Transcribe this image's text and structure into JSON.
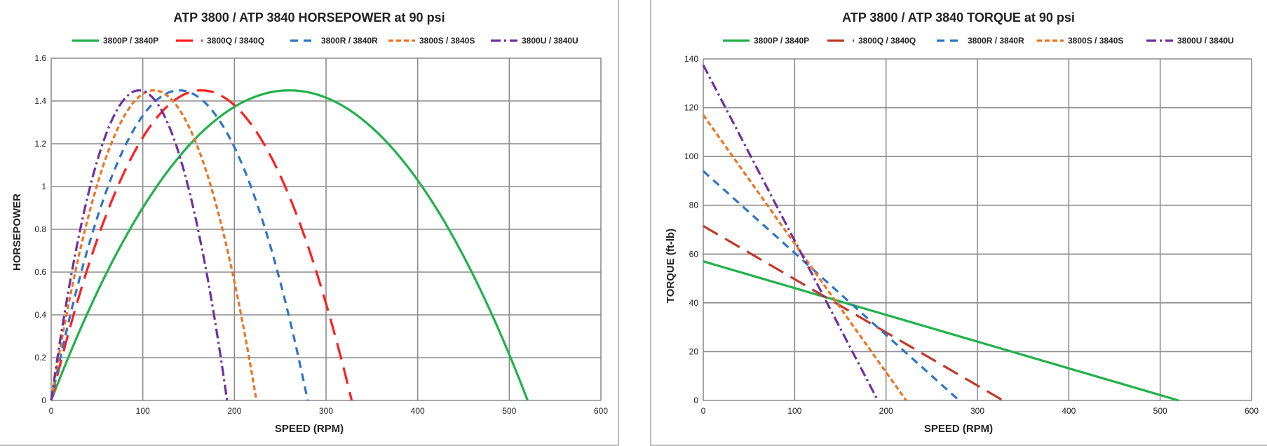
{
  "colors": {
    "p": "#22b14c",
    "q_hp": "#ff1f1f",
    "q_tq": "#c0392b",
    "r": "#2e75c6",
    "s": "#ef7320",
    "u": "#7030a0",
    "grid": "#8c8c8c"
  },
  "chart_data": [
    {
      "type": "line",
      "title": "ATP 3800 / ATP 3840 HORSEPOWER at 90 psi",
      "xlabel": "SPEED (RPM)",
      "ylabel": "HORSEPOWER",
      "xlim": [
        0,
        600
      ],
      "ylim": [
        0,
        1.6
      ],
      "xticks": [
        "0",
        "100",
        "200",
        "300",
        "400",
        "500",
        "600"
      ],
      "yticks": [
        "0",
        "0.2",
        "0.4",
        "0.6",
        "0.8",
        "1",
        "1.2",
        "1.4",
        "1.6"
      ],
      "grid": true,
      "legend_position": "top",
      "series": [
        {
          "name": "3800P / 3840P",
          "color_key": "p",
          "dash": "solid",
          "x": [
            0,
            65,
            130,
            195,
            260,
            325,
            390,
            455,
            520
          ],
          "y": [
            0,
            0.55,
            1.02,
            1.34,
            1.45,
            1.34,
            1.02,
            0.55,
            0
          ]
        },
        {
          "name": "3800Q / 3840Q",
          "color_key": "q_hp",
          "dash": "long-dash",
          "x": [
            0,
            41,
            82,
            123,
            164,
            205,
            246,
            287,
            328
          ],
          "y": [
            0,
            0.55,
            1.02,
            1.34,
            1.45,
            1.34,
            1.02,
            0.55,
            0
          ]
        },
        {
          "name": "3800R / 3840R",
          "color_key": "r",
          "dash": "dash",
          "x": [
            0,
            35,
            70,
            105,
            140,
            175,
            210,
            245,
            280
          ],
          "y": [
            0,
            0.55,
            1.02,
            1.34,
            1.45,
            1.34,
            1.02,
            0.55,
            0
          ]
        },
        {
          "name": "3800S / 3840S",
          "color_key": "s",
          "dash": "short-dash",
          "x": [
            0,
            28,
            56,
            84,
            112,
            140,
            168,
            196,
            224
          ],
          "y": [
            0,
            0.55,
            1.02,
            1.34,
            1.45,
            1.34,
            1.02,
            0.55,
            0
          ]
        },
        {
          "name": "3800U / 3840U",
          "color_key": "u",
          "dash": "dash-dot",
          "x": [
            0,
            24,
            48,
            72,
            96,
            120,
            144,
            168,
            192
          ],
          "y": [
            0,
            0.55,
            1.02,
            1.34,
            1.45,
            1.34,
            1.02,
            0.55,
            0
          ]
        }
      ]
    },
    {
      "type": "line",
      "title": "ATP 3800 / ATP 3840 TORQUE at 90 psi",
      "xlabel": "SPEED (RPM)",
      "ylabel": "TORQUE (ft-lb)",
      "xlim": [
        0,
        600
      ],
      "ylim": [
        0,
        140
      ],
      "xticks": [
        "0",
        "100",
        "200",
        "300",
        "400",
        "500",
        "600"
      ],
      "yticks": [
        "0",
        "20",
        "40",
        "60",
        "80",
        "100",
        "120",
        "140"
      ],
      "grid": true,
      "legend_position": "top",
      "series": [
        {
          "name": "3800P / 3840P",
          "color_key": "p",
          "dash": "solid",
          "x": [
            0,
            520
          ],
          "y": [
            57,
            0
          ]
        },
        {
          "name": "3800Q / 3840Q",
          "color_key": "q_tq",
          "dash": "long-dash",
          "x": [
            0,
            328
          ],
          "y": [
            71.5,
            0
          ]
        },
        {
          "name": "3800R / 3840R",
          "color_key": "r",
          "dash": "dash",
          "x": [
            0,
            280
          ],
          "y": [
            94,
            0
          ]
        },
        {
          "name": "3800S / 3840S",
          "color_key": "s",
          "dash": "short-dash",
          "x": [
            0,
            222
          ],
          "y": [
            117,
            0
          ]
        },
        {
          "name": "3800U / 3840U",
          "color_key": "u",
          "dash": "dash-dot",
          "x": [
            0,
            191
          ],
          "y": [
            137.5,
            0
          ]
        }
      ]
    }
  ]
}
